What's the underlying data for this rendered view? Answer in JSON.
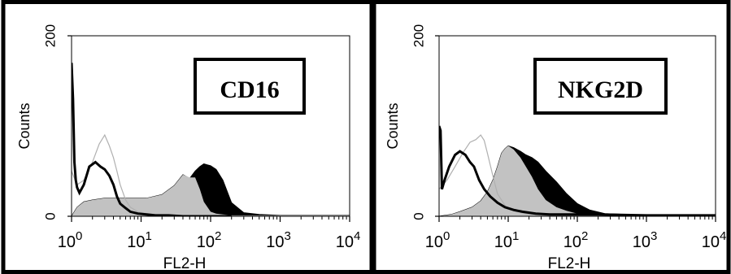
{
  "colors": {
    "frame": "#000000",
    "background": "#ffffff",
    "isotype_outline": "#000000",
    "secondary_outline": "#b0b0b0",
    "stained_fill": "#000000",
    "overlay_fill": "#c2c2c2"
  },
  "chart_data": [
    {
      "type": "area",
      "marker_label": "CD16",
      "xlabel": "FL2-H",
      "ylabel": "Counts",
      "xscale": "log",
      "xlim": [
        1,
        10000
      ],
      "ylim": [
        0,
        200
      ],
      "yticks": [
        {
          "v": 0,
          "label": "0"
        },
        {
          "v": 200,
          "label": "200"
        }
      ],
      "xticks": [
        {
          "v": 1,
          "base": "10",
          "exp": "0"
        },
        {
          "v": 10,
          "base": "10",
          "exp": "1"
        },
        {
          "v": 100,
          "base": "10",
          "exp": "2"
        },
        {
          "v": 1000,
          "base": "10",
          "exp": "3"
        },
        {
          "v": 10000,
          "base": "10",
          "exp": "4"
        }
      ],
      "series": [
        {
          "role": "isotype-black-line",
          "x": [
            1.0,
            1.05,
            1.1,
            1.15,
            1.2,
            1.3,
            1.5,
            1.8,
            2.2,
            2.6,
            3.0,
            3.5,
            4.0,
            4.5,
            5.0,
            6.0,
            7.0,
            9.0,
            12.0,
            16.0,
            25.0,
            40.0,
            80.0,
            200.0
          ],
          "y": [
            170,
            130,
            60,
            40,
            32,
            26,
            35,
            55,
            60,
            55,
            52,
            45,
            35,
            22,
            14,
            9,
            5,
            3,
            2,
            1,
            1,
            0,
            0,
            0
          ]
        },
        {
          "role": "light-gray-line",
          "x": [
            1.0,
            1.2,
            1.5,
            2.0,
            2.5,
            3.0,
            3.5,
            4.0,
            4.5,
            5.0,
            6.0,
            7.0,
            9.0,
            12.0,
            20.0,
            40.0
          ],
          "y": [
            50,
            35,
            40,
            60,
            80,
            90,
            78,
            65,
            50,
            35,
            18,
            10,
            5,
            3,
            1,
            0
          ]
        },
        {
          "role": "stained-black-fill",
          "x": [
            1.0,
            1.2,
            1.5,
            2.0,
            3.0,
            5.0,
            8.0,
            12.0,
            20.0,
            30.0,
            40.0,
            50.0,
            60.0,
            70.0,
            80.0,
            100.0,
            120.0,
            150.0,
            200.0,
            300.0,
            500.0,
            1000.0,
            10000.0
          ],
          "y": [
            0,
            10,
            16,
            18,
            20,
            20,
            20,
            20,
            24,
            34,
            46,
            42,
            50,
            55,
            58,
            56,
            52,
            40,
            15,
            4,
            2,
            1,
            1
          ]
        },
        {
          "role": "gray-overlay-fill",
          "x": [
            1.0,
            1.2,
            1.5,
            2.0,
            3.0,
            5.0,
            8.0,
            12.0,
            20.0,
            30.0,
            40.0,
            50.0,
            60.0,
            70.0,
            80.0,
            100.0,
            120.0,
            150.0,
            200.0,
            300.0,
            500.0,
            1000.0,
            10000.0
          ],
          "y": [
            0,
            10,
            16,
            18,
            20,
            20,
            20,
            20,
            24,
            34,
            46,
            43,
            43,
            30,
            16,
            5,
            3,
            2,
            1,
            1,
            1,
            1,
            1
          ]
        }
      ]
    },
    {
      "type": "area",
      "marker_label": "NKG2D",
      "xlabel": "FL2-H",
      "ylabel": "Counts",
      "xscale": "log",
      "xlim": [
        1,
        10000
      ],
      "ylim": [
        0,
        200
      ],
      "yticks": [
        {
          "v": 0,
          "label": "0"
        },
        {
          "v": 200,
          "label": "200"
        }
      ],
      "xticks": [
        {
          "v": 1,
          "base": "10",
          "exp": "0"
        },
        {
          "v": 10,
          "base": "10",
          "exp": "1"
        },
        {
          "v": 100,
          "base": "10",
          "exp": "2"
        },
        {
          "v": 1000,
          "base": "10",
          "exp": "3"
        },
        {
          "v": 10000,
          "base": "10",
          "exp": "4"
        }
      ],
      "series": [
        {
          "role": "isotype-black-line",
          "x": [
            1.0,
            1.05,
            1.1,
            1.2,
            1.4,
            1.7,
            2.0,
            2.4,
            2.8,
            3.2,
            3.8,
            4.5,
            5.5,
            7.0,
            9.0,
            12.0,
            16.0,
            25.0,
            40.0,
            80.0,
            200.0,
            1000.0,
            10000.0
          ],
          "y": [
            100,
            95,
            30,
            40,
            55,
            68,
            72,
            68,
            60,
            55,
            40,
            30,
            22,
            15,
            10,
            7,
            5,
            3,
            2,
            2,
            2,
            1,
            1
          ]
        },
        {
          "role": "light-gray-line",
          "x": [
            1.0,
            1.3,
            1.7,
            2.2,
            2.8,
            3.4,
            4.0,
            4.5,
            5.0,
            6.0,
            7.0,
            9.0,
            12.0,
            20.0,
            40.0
          ],
          "y": [
            30,
            40,
            55,
            70,
            82,
            85,
            90,
            84,
            70,
            45,
            25,
            12,
            6,
            2,
            1
          ]
        },
        {
          "role": "stained-black-fill",
          "x": [
            1.0,
            1.5,
            2.0,
            3.0,
            4.0,
            5.0,
            6.0,
            7.0,
            8.0,
            9.0,
            10.0,
            12.0,
            15.0,
            18.0,
            22.0,
            27.0,
            35.0,
            50.0,
            70.0,
            100.0,
            150.0,
            250.0,
            500.0,
            1000.0,
            10000.0
          ],
          "y": [
            0,
            2,
            5,
            10,
            17,
            27,
            40,
            55,
            70,
            75,
            78,
            76,
            72,
            68,
            65,
            60,
            50,
            38,
            25,
            14,
            7,
            3,
            2,
            1,
            1
          ]
        },
        {
          "role": "gray-overlay-fill",
          "x": [
            1.0,
            1.5,
            2.0,
            3.0,
            4.0,
            5.0,
            6.0,
            7.0,
            8.0,
            9.0,
            10.0,
            12.0,
            15.0,
            18.0,
            22.0,
            27.0,
            35.0,
            50.0,
            70.0,
            100.0,
            150.0,
            250.0,
            500.0,
            1000.0,
            10000.0
          ],
          "y": [
            0,
            2,
            5,
            10,
            17,
            27,
            40,
            55,
            70,
            75,
            78,
            74,
            65,
            55,
            44,
            30,
            18,
            10,
            6,
            3,
            2,
            1,
            1,
            1,
            1
          ]
        }
      ]
    }
  ]
}
